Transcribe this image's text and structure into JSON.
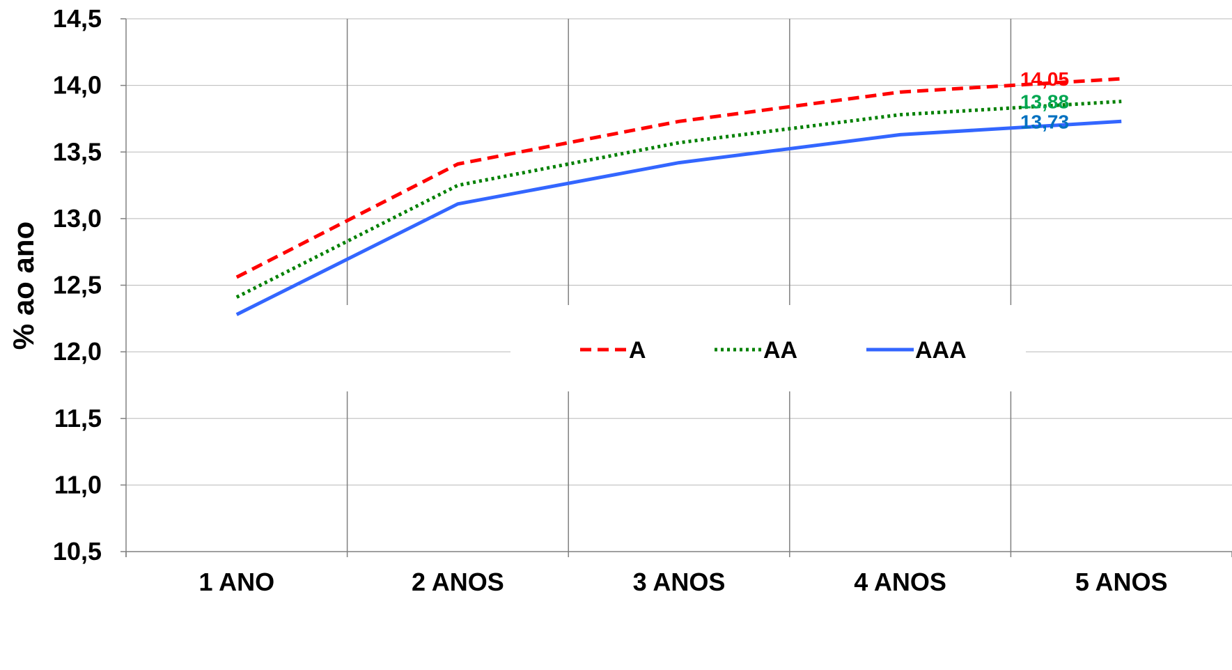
{
  "chart_data": {
    "type": "line",
    "title": "",
    "xlabel": "",
    "ylabel": "% ao ano",
    "categories": [
      "1 ANO",
      "2 ANOS",
      "3 ANOS",
      "4 ANOS",
      "5 ANOS"
    ],
    "ylim": [
      10.5,
      14.5
    ],
    "yticks": [
      "10,5",
      "11,0",
      "11,5",
      "12,0",
      "12,5",
      "13,0",
      "13,5",
      "14,0",
      "14,5"
    ],
    "grid": true,
    "legend_position": "center-right",
    "series": [
      {
        "name": "A",
        "values": [
          12.56,
          13.41,
          13.73,
          13.95,
          14.05
        ],
        "color": "#ff0000",
        "style": "dashed",
        "end_label": "14,05",
        "end_label_color": "#ff0000"
      },
      {
        "name": "AA",
        "values": [
          12.41,
          13.25,
          13.57,
          13.78,
          13.88
        ],
        "color": "#008000",
        "style": "dotted",
        "end_label": "13,88",
        "end_label_color": "#00a650"
      },
      {
        "name": "AAA",
        "values": [
          12.28,
          13.11,
          13.42,
          13.63,
          13.73
        ],
        "color": "#3366ff",
        "style": "solid",
        "end_label": "13,73",
        "end_label_color": "#0070c0"
      }
    ]
  }
}
